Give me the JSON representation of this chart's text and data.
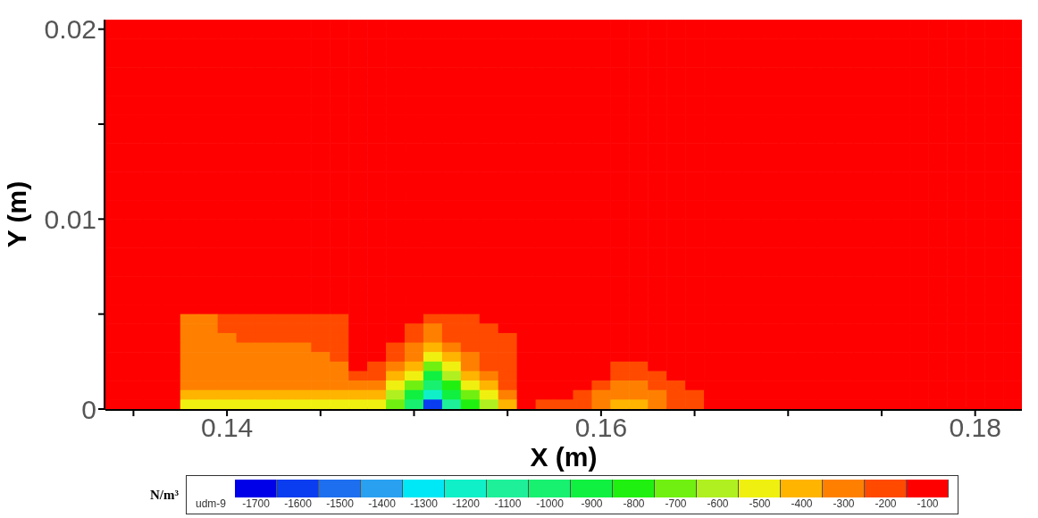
{
  "chart_data": {
    "type": "heatmap",
    "xlabel": "X (m)",
    "ylabel": "Y (m)",
    "clabel": "N/m³",
    "annotations": [
      "udm-9"
    ],
    "xlim": [
      0.1335,
      0.1825
    ],
    "ylim": [
      0,
      0.0205
    ],
    "xticks": [
      {
        "value": 0.135,
        "label": null
      },
      0.14,
      {
        "value": 0.145,
        "label": null
      },
      {
        "value": 0.15,
        "label": null
      },
      {
        "value": 0.155,
        "label": null
      },
      0.16,
      {
        "value": 0.165,
        "label": null
      },
      {
        "value": 0.17,
        "label": null
      },
      {
        "value": 0.175,
        "label": null
      },
      0.18
    ],
    "yticks": [
      0,
      {
        "value": 0.005,
        "label": null
      },
      0.01,
      {
        "value": 0.015,
        "label": null
      },
      0.02
    ],
    "clim": [
      -1750,
      -50
    ],
    "cticks": [
      -1700,
      -1600,
      -1500,
      -1400,
      -1300,
      -1200,
      -1100,
      -1000,
      -900,
      -800,
      -700,
      -600,
      -500,
      -400,
      -300,
      -200,
      -100
    ],
    "cells": [
      [
        -100,
        -100,
        -100,
        -100,
        -100,
        -100,
        -100,
        -100,
        -100,
        -100,
        -100,
        -100,
        -100,
        -100,
        -100,
        -100,
        -100,
        -100,
        -100,
        -100,
        -100,
        -100,
        -100,
        -100,
        -100,
        -100,
        -100,
        -100,
        -100,
        -100,
        -100,
        -100,
        -100,
        -100,
        -100,
        -100,
        -100,
        -100,
        -100,
        -100,
        -100,
        -100,
        -100,
        -100,
        -100,
        -100,
        -100,
        -100,
        -100
      ],
      [
        -100,
        -100,
        -100,
        -100,
        -100,
        -100,
        -100,
        -100,
        -100,
        -100,
        -100,
        -100,
        -100,
        -100,
        -100,
        -100,
        -100,
        -100,
        -100,
        -100,
        -100,
        -100,
        -100,
        -100,
        -100,
        -100,
        -100,
        -100,
        -100,
        -100,
        -100,
        -100,
        -100,
        -100,
        -100,
        -100,
        -100,
        -100,
        -100,
        -100,
        -100,
        -100,
        -100,
        -100,
        -100,
        -100,
        -100,
        -100,
        -100
      ],
      [
        -100,
        -100,
        -100,
        -100,
        -100,
        -100,
        -100,
        -100,
        -100,
        -100,
        -100,
        -100,
        -100,
        -100,
        -100,
        -100,
        -100,
        -100,
        -100,
        -100,
        -100,
        -100,
        -100,
        -100,
        -100,
        -100,
        -100,
        -100,
        -100,
        -100,
        -100,
        -100,
        -100,
        -100,
        -100,
        -100,
        -100,
        -100,
        -100,
        -100,
        -100,
        -100,
        -100,
        -100,
        -100,
        -100,
        -100,
        -100,
        -100
      ],
      [
        -100,
        -100,
        -100,
        -100,
        -100,
        -100,
        -100,
        -100,
        -100,
        -100,
        -100,
        -100,
        -100,
        -100,
        -100,
        -100,
        -100,
        -100,
        -100,
        -100,
        -100,
        -100,
        -100,
        -100,
        -100,
        -100,
        -100,
        -100,
        -100,
        -100,
        -100,
        -100,
        -100,
        -100,
        -100,
        -100,
        -100,
        -100,
        -100,
        -100,
        -100,
        -100,
        -100,
        -100,
        -100,
        -100,
        -100,
        -100,
        -100
      ],
      [
        -100,
        -100,
        -100,
        -100,
        -100,
        -100,
        -100,
        -100,
        -100,
        -100,
        -100,
        -100,
        -100,
        -100,
        -100,
        -100,
        -100,
        -100,
        -100,
        -100,
        -100,
        -100,
        -100,
        -100,
        -100,
        -100,
        -100,
        -100,
        -100,
        -100,
        -100,
        -100,
        -100,
        -100,
        -100,
        -100,
        -100,
        -100,
        -100,
        -100,
        -100,
        -100,
        -100,
        -100,
        -100,
        -100,
        -100,
        -100,
        -100
      ],
      [
        -100,
        -100,
        -100,
        -100,
        -100,
        -100,
        -100,
        -100,
        -100,
        -100,
        -100,
        -100,
        -100,
        -100,
        -100,
        -100,
        -100,
        -100,
        -100,
        -100,
        -100,
        -100,
        -100,
        -100,
        -100,
        -100,
        -100,
        -100,
        -100,
        -100,
        -100,
        -100,
        -100,
        -100,
        -100,
        -100,
        -100,
        -100,
        -100,
        -100,
        -100,
        -100,
        -100,
        -100,
        -100,
        -100,
        -100,
        -100,
        -100
      ],
      [
        -100,
        -100,
        -100,
        -100,
        -100,
        -100,
        -100,
        -100,
        -100,
        -100,
        -100,
        -100,
        -100,
        -100,
        -100,
        -100,
        -100,
        -100,
        -100,
        -100,
        -100,
        -100,
        -100,
        -100,
        -100,
        -100,
        -100,
        -100,
        -100,
        -100,
        -100,
        -100,
        -100,
        -100,
        -100,
        -100,
        -100,
        -100,
        -100,
        -100,
        -100,
        -100,
        -100,
        -100,
        -100,
        -100,
        -100,
        -100,
        -100
      ],
      [
        -100,
        -100,
        -100,
        -100,
        -100,
        -100,
        -100,
        -100,
        -100,
        -100,
        -100,
        -100,
        -100,
        -100,
        -100,
        -100,
        -100,
        -100,
        -100,
        -100,
        -100,
        -100,
        -100,
        -100,
        -100,
        -100,
        -100,
        -100,
        -100,
        -100,
        -100,
        -100,
        -100,
        -100,
        -100,
        -100,
        -100,
        -100,
        -100,
        -100,
        -100,
        -100,
        -100,
        -100,
        -100,
        -100,
        -100,
        -100,
        -100
      ],
      [
        -100,
        -100,
        -100,
        -100,
        -100,
        -100,
        -100,
        -100,
        -100,
        -100,
        -100,
        -100,
        -100,
        -100,
        -100,
        -100,
        -100,
        -100,
        -100,
        -100,
        -100,
        -100,
        -100,
        -100,
        -100,
        -100,
        -100,
        -100,
        -100,
        -100,
        -100,
        -100,
        -100,
        -100,
        -100,
        -100,
        -100,
        -100,
        -100,
        -100,
        -100,
        -100,
        -100,
        -100,
        -100,
        -100,
        -100,
        -100,
        -100
      ],
      [
        -100,
        -100,
        -100,
        -100,
        -100,
        -100,
        -100,
        -100,
        -100,
        -100,
        -100,
        -100,
        -100,
        -100,
        -100,
        -100,
        -100,
        -100,
        -100,
        -100,
        -100,
        -100,
        -100,
        -100,
        -100,
        -100,
        -100,
        -100,
        -100,
        -100,
        -100,
        -100,
        -100,
        -100,
        -100,
        -100,
        -100,
        -100,
        -100,
        -100,
        -100,
        -100,
        -100,
        -100,
        -100,
        -100,
        -100,
        -100,
        -100
      ],
      [
        -100,
        -100,
        -100,
        -100,
        -100,
        -100,
        -100,
        -100,
        -100,
        -100,
        -100,
        -100,
        -100,
        -100,
        -100,
        -100,
        -100,
        -100,
        -100,
        -100,
        -100,
        -100,
        -100,
        -100,
        -100,
        -100,
        -100,
        -100,
        -100,
        -100,
        -100,
        -100,
        -100,
        -100,
        -100,
        -100,
        -100,
        -100,
        -100,
        -100,
        -100,
        -100,
        -100,
        -100,
        -100,
        -100,
        -100,
        -100,
        -100
      ],
      [
        -100,
        -100,
        -100,
        -100,
        -100,
        -100,
        -100,
        -100,
        -100,
        -100,
        -100,
        -100,
        -100,
        -100,
        -100,
        -100,
        -100,
        -100,
        -100,
        -100,
        -100,
        -100,
        -100,
        -100,
        -100,
        -100,
        -100,
        -100,
        -100,
        -100,
        -100,
        -100,
        -100,
        -100,
        -100,
        -100,
        -100,
        -100,
        -100,
        -100,
        -100,
        -100,
        -100,
        -100,
        -100,
        -100,
        -100,
        -100,
        -100
      ],
      [
        -100,
        -100,
        -100,
        -100,
        -100,
        -100,
        -100,
        -100,
        -100,
        -100,
        -100,
        -100,
        -100,
        -100,
        -100,
        -100,
        -100,
        -100,
        -100,
        -100,
        -100,
        -100,
        -100,
        -100,
        -100,
        -100,
        -100,
        -100,
        -100,
        -100,
        -100,
        -100,
        -100,
        -100,
        -100,
        -100,
        -100,
        -100,
        -100,
        -100,
        -100,
        -100,
        -100,
        -100,
        -100,
        -100,
        -100,
        -100,
        -100
      ],
      [
        -100,
        -100,
        -100,
        -100,
        -100,
        -100,
        -100,
        -100,
        -100,
        -100,
        -100,
        -100,
        -100,
        -100,
        -100,
        -100,
        -100,
        -100,
        -100,
        -100,
        -100,
        -100,
        -100,
        -100,
        -100,
        -100,
        -100,
        -100,
        -100,
        -100,
        -100,
        -100,
        -100,
        -100,
        -100,
        -100,
        -100,
        -100,
        -100,
        -100,
        -100,
        -100,
        -100,
        -100,
        -100,
        -100,
        -100,
        -100,
        -100
      ],
      [
        -100,
        -100,
        -100,
        -100,
        -100,
        -100,
        -100,
        -100,
        -100,
        -100,
        -100,
        -100,
        -100,
        -100,
        -100,
        -100,
        -100,
        -100,
        -100,
        -100,
        -100,
        -100,
        -100,
        -100,
        -100,
        -100,
        -100,
        -100,
        -100,
        -100,
        -100,
        -100,
        -100,
        -100,
        -100,
        -100,
        -100,
        -100,
        -100,
        -100,
        -100,
        -100,
        -100,
        -100,
        -100,
        -100,
        -100,
        -100,
        -100
      ],
      [
        -100,
        -100,
        -100,
        -100,
        -100,
        -100,
        -100,
        -100,
        -100,
        -100,
        -100,
        -100,
        -100,
        -100,
        -100,
        -100,
        -100,
        -100,
        -100,
        -100,
        -100,
        -100,
        -100,
        -100,
        -100,
        -100,
        -100,
        -100,
        -100,
        -100,
        -100,
        -100,
        -100,
        -100,
        -100,
        -100,
        -100,
        -100,
        -100,
        -100,
        -100,
        -100,
        -100,
        -100,
        -100,
        -100,
        -100,
        -100,
        -100
      ],
      [
        -100,
        -100,
        -100,
        -100,
        -100,
        -100,
        -100,
        -100,
        -100,
        -100,
        -100,
        -100,
        -100,
        -100,
        -100,
        -100,
        -100,
        -100,
        -100,
        -100,
        -100,
        -100,
        -100,
        -100,
        -100,
        -100,
        -100,
        -100,
        -100,
        -100,
        -100,
        -100,
        -100,
        -100,
        -100,
        -100,
        -100,
        -100,
        -100,
        -100,
        -100,
        -100,
        -100,
        -100,
        -100,
        -100,
        -100,
        -100,
        -100
      ],
      [
        -100,
        -100,
        -100,
        -100,
        -100,
        -100,
        -100,
        -100,
        -100,
        -100,
        -100,
        -100,
        -100,
        -100,
        -100,
        -100,
        -100,
        -100,
        -100,
        -100,
        -100,
        -100,
        -100,
        -100,
        -100,
        -100,
        -100,
        -100,
        -100,
        -100,
        -100,
        -100,
        -100,
        -100,
        -100,
        -100,
        -100,
        -100,
        -100,
        -100,
        -100,
        -100,
        -100,
        -100,
        -100,
        -100,
        -100,
        -100,
        -100
      ],
      [
        -100,
        -100,
        -100,
        -100,
        -100,
        -100,
        -100,
        -100,
        -100,
        -100,
        -100,
        -100,
        -100,
        -100,
        -100,
        -100,
        -100,
        -100,
        -100,
        -100,
        -100,
        -100,
        -100,
        -100,
        -100,
        -100,
        -100,
        -100,
        -100,
        -100,
        -100,
        -100,
        -100,
        -100,
        -100,
        -100,
        -100,
        -100,
        -100,
        -100,
        -100,
        -100,
        -100,
        -100,
        -100,
        -100,
        -100,
        -100,
        -100
      ],
      [
        -100,
        -100,
        -100,
        -100,
        -100,
        -100,
        -100,
        -100,
        -100,
        -100,
        -100,
        -100,
        -100,
        -100,
        -100,
        -100,
        -100,
        -100,
        -100,
        -100,
        -100,
        -100,
        -100,
        -100,
        -100,
        -100,
        -100,
        -100,
        -100,
        -100,
        -100,
        -100,
        -100,
        -100,
        -100,
        -100,
        -100,
        -100,
        -100,
        -100,
        -100,
        -100,
        -100,
        -100,
        -100,
        -100,
        -100,
        -100,
        -100
      ],
      [
        -100,
        -100,
        -100,
        -100,
        -100,
        -100,
        -100,
        -100,
        -100,
        -100,
        -100,
        -100,
        -100,
        -100,
        -100,
        -100,
        -100,
        -100,
        -100,
        -100,
        -100,
        -100,
        -100,
        -100,
        -100,
        -100,
        -100,
        -100,
        -100,
        -100,
        -100,
        -100,
        -100,
        -100,
        -100,
        -100,
        -100,
        -100,
        -100,
        -100,
        -100,
        -100,
        -100,
        -100,
        -100,
        -100,
        -100,
        -100,
        -100
      ],
      [
        -100,
        -100,
        -100,
        -100,
        -100,
        -100,
        -100,
        -100,
        -100,
        -100,
        -100,
        -100,
        -100,
        -100,
        -100,
        -100,
        -100,
        -100,
        -100,
        -100,
        -100,
        -100,
        -100,
        -100,
        -100,
        -100,
        -100,
        -100,
        -100,
        -100,
        -100,
        -100,
        -100,
        -100,
        -100,
        -100,
        -100,
        -100,
        -100,
        -100,
        -100,
        -100,
        -100,
        -100,
        -100,
        -100,
        -100,
        -100,
        -100
      ],
      [
        -100,
        -100,
        -100,
        -100,
        -100,
        -100,
        -100,
        -100,
        -100,
        -100,
        -100,
        -100,
        -100,
        -100,
        -100,
        -100,
        -100,
        -100,
        -100,
        -100,
        -100,
        -100,
        -100,
        -100,
        -100,
        -100,
        -100,
        -100,
        -100,
        -100,
        -100,
        -100,
        -100,
        -100,
        -100,
        -100,
        -100,
        -100,
        -100,
        -100,
        -100,
        -100,
        -100,
        -100,
        -100,
        -100,
        -100,
        -100,
        -100
      ],
      [
        -100,
        -100,
        -100,
        -100,
        -100,
        -100,
        -100,
        -100,
        -100,
        -100,
        -100,
        -100,
        -100,
        -100,
        -100,
        -100,
        -100,
        -100,
        -100,
        -100,
        -100,
        -100,
        -100,
        -100,
        -100,
        -100,
        -100,
        -100,
        -100,
        -100,
        -100,
        -100,
        -100,
        -100,
        -100,
        -100,
        -100,
        -100,
        -100,
        -100,
        -100,
        -100,
        -100,
        -100,
        -100,
        -100,
        -100,
        -100,
        -100
      ],
      [
        -100,
        -100,
        -100,
        -100,
        -100,
        -100,
        -100,
        -100,
        -100,
        -100,
        -100,
        -100,
        -100,
        -100,
        -100,
        -100,
        -100,
        -100,
        -100,
        -100,
        -100,
        -100,
        -100,
        -100,
        -100,
        -100,
        -100,
        -100,
        -100,
        -100,
        -100,
        -100,
        -100,
        -100,
        -100,
        -100,
        -100,
        -100,
        -100,
        -100,
        -100,
        -100,
        -100,
        -100,
        -100,
        -100,
        -100,
        -100,
        -100
      ],
      [
        -100,
        -100,
        -100,
        -100,
        -100,
        -100,
        -100,
        -100,
        -100,
        -100,
        -100,
        -100,
        -100,
        -100,
        -100,
        -100,
        -100,
        -100,
        -100,
        -100,
        -100,
        -100,
        -100,
        -100,
        -100,
        -100,
        -100,
        -100,
        -100,
        -100,
        -100,
        -100,
        -100,
        -100,
        -100,
        -100,
        -100,
        -100,
        -100,
        -100,
        -100,
        -100,
        -100,
        -100,
        -100,
        -100,
        -100,
        -100,
        -100
      ],
      [
        -100,
        -100,
        -100,
        -100,
        -100,
        -100,
        -100,
        -100,
        -100,
        -100,
        -100,
        -100,
        -100,
        -100,
        -100,
        -100,
        -100,
        -100,
        -100,
        -100,
        -100,
        -100,
        -100,
        -100,
        -100,
        -100,
        -100,
        -100,
        -100,
        -100,
        -100,
        -100,
        -100,
        -100,
        -100,
        -100,
        -100,
        -100,
        -100,
        -100,
        -100,
        -100,
        -100,
        -100,
        -100,
        -100,
        -100,
        -100,
        -100
      ],
      [
        -100,
        -100,
        -100,
        -100,
        -100,
        -100,
        -100,
        -100,
        -100,
        -100,
        -100,
        -100,
        -100,
        -100,
        -100,
        -100,
        -100,
        -100,
        -100,
        -100,
        -100,
        -100,
        -100,
        -100,
        -100,
        -100,
        -100,
        -100,
        -100,
        -100,
        -100,
        -100,
        -100,
        -100,
        -100,
        -100,
        -100,
        -100,
        -100,
        -100,
        -100,
        -100,
        -100,
        -100,
        -100,
        -100,
        -100,
        -100,
        -100
      ],
      [
        -100,
        -100,
        -100,
        -100,
        -100,
        -100,
        -100,
        -100,
        -100,
        -100,
        -100,
        -100,
        -100,
        -100,
        -100,
        -100,
        -100,
        -100,
        -100,
        -100,
        -100,
        -100,
        -100,
        -100,
        -100,
        -100,
        -100,
        -100,
        -100,
        -100,
        -100,
        -100,
        -100,
        -100,
        -100,
        -100,
        -100,
        -100,
        -100,
        -100,
        -100,
        -100,
        -100,
        -100,
        -100,
        -100,
        -100,
        -100,
        -100
      ],
      [
        -100,
        -100,
        -100,
        -100,
        -100,
        -100,
        -100,
        -100,
        -100,
        -100,
        -100,
        -100,
        -100,
        -100,
        -100,
        -100,
        -100,
        -100,
        -100,
        -100,
        -100,
        -100,
        -100,
        -100,
        -100,
        -100,
        -100,
        -100,
        -100,
        -100,
        -100,
        -100,
        -100,
        -100,
        -100,
        -100,
        -100,
        -100,
        -100,
        -100,
        -100,
        -100,
        -100,
        -100,
        -100,
        -100,
        -100,
        -100,
        -100
      ],
      [
        -100,
        -100,
        -100,
        -100,
        -100,
        -100,
        -100,
        -100,
        -100,
        -100,
        -100,
        -100,
        -100,
        -100,
        -100,
        -100,
        -100,
        -100,
        -100,
        -100,
        -100,
        -100,
        -100,
        -100,
        -100,
        -100,
        -100,
        -100,
        -100,
        -100,
        -100,
        -100,
        -100,
        -100,
        -100,
        -100,
        -100,
        -100,
        -100,
        -100,
        -100,
        -100,
        -100,
        -100,
        -100,
        -100,
        -100,
        -100,
        -100
      ],
      [
        -100,
        -100,
        -100,
        -100,
        -300,
        -300,
        -200,
        -200,
        -200,
        -200,
        -200,
        -200,
        -200,
        -100,
        -100,
        -100,
        -100,
        -200,
        -200,
        -200,
        -100,
        -100,
        -100,
        -100,
        -100,
        -100,
        -100,
        -100,
        -100,
        -100,
        -100,
        -100,
        -100,
        -100,
        -100,
        -100,
        -100,
        -100,
        -100,
        -100,
        -100,
        -100,
        -100,
        -100,
        -100,
        -100,
        -100,
        -100,
        -100
      ],
      [
        -100,
        -100,
        -100,
        -100,
        -300,
        -300,
        -200,
        -200,
        -200,
        -200,
        -200,
        -200,
        -200,
        -100,
        -100,
        -100,
        -200,
        -300,
        -200,
        -200,
        -200,
        -100,
        -100,
        -100,
        -100,
        -100,
        -100,
        -100,
        -100,
        -100,
        -100,
        -100,
        -100,
        -100,
        -100,
        -100,
        -100,
        -100,
        -100,
        -100,
        -100,
        -100,
        -100,
        -100,
        -100,
        -100,
        -100,
        -100,
        -100
      ],
      [
        -100,
        -100,
        -100,
        -100,
        -300,
        -300,
        -300,
        -200,
        -200,
        -200,
        -200,
        -200,
        -200,
        -100,
        -100,
        -100,
        -200,
        -300,
        -200,
        -200,
        -200,
        -200,
        -100,
        -100,
        -100,
        -100,
        -100,
        -100,
        -100,
        -100,
        -100,
        -100,
        -100,
        -100,
        -100,
        -100,
        -100,
        -100,
        -100,
        -100,
        -100,
        -100,
        -100,
        -100,
        -100,
        -100,
        -100,
        -100,
        -100
      ],
      [
        -100,
        -100,
        -100,
        -100,
        -300,
        -300,
        -300,
        -300,
        -300,
        -300,
        -300,
        -200,
        -200,
        -100,
        -100,
        -200,
        -300,
        -400,
        -300,
        -200,
        -200,
        -200,
        -100,
        -100,
        -100,
        -100,
        -100,
        -100,
        -100,
        -100,
        -100,
        -100,
        -100,
        -100,
        -100,
        -100,
        -100,
        -100,
        -100,
        -100,
        -100,
        -100,
        -100,
        -100,
        -100,
        -100,
        -100,
        -100,
        -100
      ],
      [
        -100,
        -100,
        -100,
        -100,
        -300,
        -300,
        -300,
        -300,
        -300,
        -300,
        -300,
        -300,
        -200,
        -100,
        -100,
        -200,
        -300,
        -500,
        -400,
        -300,
        -200,
        -200,
        -100,
        -100,
        -100,
        -100,
        -100,
        -100,
        -100,
        -100,
        -100,
        -100,
        -100,
        -100,
        -100,
        -100,
        -100,
        -100,
        -100,
        -100,
        -100,
        -100,
        -100,
        -100,
        -100,
        -100,
        -100,
        -100,
        -100
      ],
      [
        -100,
        -100,
        -100,
        -100,
        -300,
        -300,
        -300,
        -300,
        -300,
        -300,
        -300,
        -300,
        -300,
        -100,
        -200,
        -300,
        -400,
        -700,
        -500,
        -300,
        -200,
        -200,
        -100,
        -100,
        -100,
        -100,
        -100,
        -200,
        -200,
        -100,
        -100,
        -100,
        -100,
        -100,
        -100,
        -100,
        -100,
        -100,
        -100,
        -100,
        -100,
        -100,
        -100,
        -100,
        -100,
        -100,
        -100,
        -100,
        -100
      ],
      [
        -100,
        -100,
        -100,
        -100,
        -300,
        -300,
        -300,
        -300,
        -300,
        -300,
        -300,
        -300,
        -300,
        -200,
        -200,
        -400,
        -500,
        -900,
        -600,
        -400,
        -300,
        -200,
        -100,
        -100,
        -100,
        -100,
        -100,
        -200,
        -200,
        -200,
        -100,
        -100,
        -100,
        -100,
        -100,
        -100,
        -100,
        -100,
        -100,
        -100,
        -100,
        -100,
        -100,
        -100,
        -100,
        -100,
        -100,
        -100,
        -100
      ],
      [
        -100,
        -100,
        -100,
        -100,
        -300,
        -300,
        -300,
        -300,
        -300,
        -300,
        -300,
        -300,
        -300,
        -300,
        -300,
        -500,
        -700,
        -1000,
        -800,
        -500,
        -400,
        -200,
        -100,
        -100,
        -100,
        -100,
        -200,
        -300,
        -300,
        -200,
        -200,
        -100,
        -100,
        -100,
        -100,
        -100,
        -100,
        -100,
        -100,
        -100,
        -100,
        -100,
        -100,
        -100,
        -100,
        -100,
        -100,
        -100,
        -100
      ],
      [
        -100,
        -100,
        -100,
        -100,
        -400,
        -400,
        -400,
        -400,
        -400,
        -400,
        -400,
        -400,
        -400,
        -400,
        -400,
        -600,
        -900,
        -1200,
        -900,
        -700,
        -500,
        -300,
        -100,
        -100,
        -100,
        -200,
        -300,
        -300,
        -300,
        -300,
        -200,
        -200,
        -100,
        -100,
        -100,
        -100,
        -100,
        -100,
        -100,
        -100,
        -100,
        -100,
        -100,
        -100,
        -100,
        -100,
        -100,
        -100,
        -100
      ],
      [
        -100,
        -100,
        -100,
        -100,
        -500,
        -500,
        -500,
        -500,
        -500,
        -500,
        -500,
        -500,
        -500,
        -500,
        -500,
        -700,
        -1000,
        -1600,
        -1100,
        -800,
        -600,
        -400,
        -100,
        -200,
        -200,
        -200,
        -300,
        -400,
        -400,
        -300,
        -200,
        -200,
        -100,
        -100,
        -100,
        -100,
        -100,
        -100,
        -100,
        -100,
        -100,
        -100,
        -100,
        -100,
        -100,
        -100,
        -100,
        -100,
        -100
      ]
    ]
  }
}
